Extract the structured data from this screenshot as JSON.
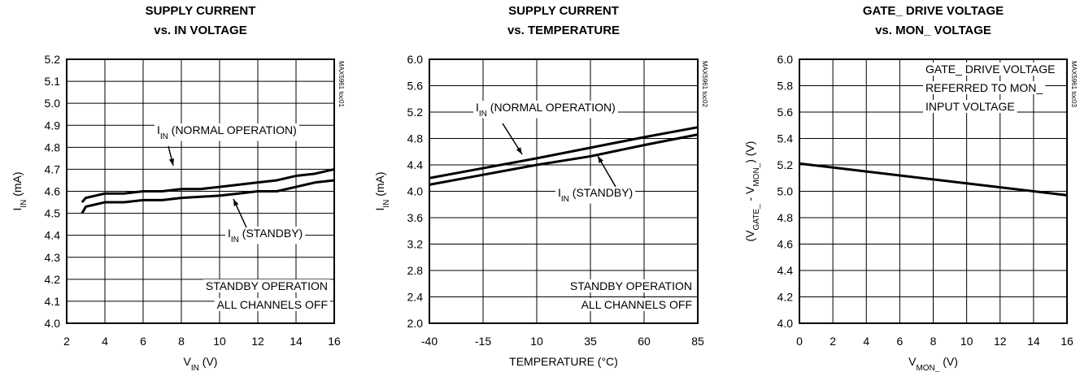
{
  "chart_data": [
    {
      "type": "line",
      "title": [
        "SUPPLY CURRENT",
        "vs. IN VOLTAGE"
      ],
      "side_label": "MAX5961 toc01",
      "xlabel": [
        "V",
        "IN",
        " (V)"
      ],
      "ylabel": [
        "I",
        "IN",
        " (mA)"
      ],
      "x": [
        2.8,
        3,
        3.5,
        4,
        5,
        6,
        7,
        8,
        9,
        10,
        11,
        12,
        13,
        14,
        15,
        16
      ],
      "series": [
        {
          "name": "NORMAL OPERATION",
          "color": "#000000",
          "values": [
            4.55,
            4.57,
            4.58,
            4.59,
            4.59,
            4.6,
            4.6,
            4.61,
            4.61,
            4.62,
            4.63,
            4.64,
            4.65,
            4.67,
            4.68,
            4.7
          ]
        },
        {
          "name": "STANDBY",
          "color": "#000000",
          "values": [
            4.5,
            4.53,
            4.54,
            4.55,
            4.55,
            4.56,
            4.56,
            4.57,
            4.575,
            4.58,
            4.59,
            4.6,
            4.6,
            4.62,
            4.64,
            4.65
          ]
        }
      ],
      "xlim": [
        2,
        16
      ],
      "xticks": [
        2,
        4,
        6,
        8,
        10,
        12,
        14,
        16
      ],
      "ylim": [
        4,
        5.2
      ],
      "yticks": [
        {
          "value": 4,
          "label": "4.0"
        },
        4.1,
        4.2,
        4.3,
        4.4,
        4.5,
        4.6,
        4.7,
        4.8,
        4.9,
        {
          "value": 5,
          "label": "5.0"
        },
        5.1,
        5.2
      ],
      "grid": true,
      "annotations": [
        [
          [
            "I",
            "IN",
            " (NORMAL OPERATION)"
          ]
        ],
        [
          [
            "I",
            "IN",
            " (STANDBY)"
          ]
        ],
        [
          [
            "STANDBY OPERATION"
          ],
          [
            "ALL CHANNELS OFF"
          ]
        ]
      ]
    },
    {
      "type": "line",
      "title": [
        "SUPPLY CURRENT",
        "vs. TEMPERATURE"
      ],
      "side_label": "MAX5961 toc02",
      "xlabel": [
        "TEMPERATURE (°C)"
      ],
      "ylabel": [
        "I",
        "IN",
        " (mA)"
      ],
      "x": [
        -40,
        -15,
        10,
        35,
        60,
        85
      ],
      "series": [
        {
          "name": "NORMAL OPERATION",
          "color": "#000000",
          "values": [
            4.2,
            4.35,
            4.5,
            4.66,
            4.82,
            4.97
          ]
        },
        {
          "name": "STANDBY",
          "color": "#000000",
          "values": [
            4.1,
            4.25,
            4.4,
            4.53,
            4.7,
            4.86
          ]
        }
      ],
      "xlim": [
        -40,
        85
      ],
      "xticks": [
        -40,
        -15,
        10,
        35,
        60,
        85
      ],
      "ylim": [
        2,
        6
      ],
      "yticks": [
        {
          "value": 2,
          "label": "2.0"
        },
        2.4,
        2.8,
        3.2,
        3.6,
        {
          "value": 4,
          "label": "4.0"
        },
        4.4,
        4.8,
        5.2,
        5.6,
        {
          "value": 6,
          "label": "6.0"
        }
      ],
      "grid": true,
      "annotations": [
        [
          [
            "I",
            "IN",
            " (NORMAL OPERATION)"
          ]
        ],
        [
          [
            "I",
            "IN",
            " (STANDBY)"
          ]
        ],
        [
          [
            "STANDBY OPERATION"
          ],
          [
            "ALL CHANNELS OFF"
          ]
        ]
      ]
    },
    {
      "type": "line",
      "title": [
        "GATE_ DRIVE VOLTAGE",
        "vs. MON_ VOLTAGE"
      ],
      "side_label": "MAX5961 toc03",
      "xlabel": [
        "V",
        "MON_",
        " (V)"
      ],
      "ylabel": [
        "(V",
        "GATE_",
        " - V",
        "MON_",
        ") (V)"
      ],
      "x": [
        0,
        4,
        8,
        12,
        16
      ],
      "series": [
        {
          "name": "GATE_ DRIVE VOLTAGE",
          "color": "#000000",
          "values": [
            5.21,
            5.15,
            5.09,
            5.03,
            4.97
          ]
        }
      ],
      "xlim": [
        0,
        16
      ],
      "xticks": [
        0,
        2,
        4,
        6,
        8,
        10,
        12,
        14,
        16
      ],
      "ylim": [
        4,
        6
      ],
      "yticks": [
        {
          "value": 4,
          "label": "4.0"
        },
        4.2,
        4.4,
        4.6,
        4.8,
        {
          "value": 5,
          "label": "5.0"
        },
        5.2,
        5.4,
        5.6,
        5.8,
        {
          "value": 6,
          "label": "6.0"
        }
      ],
      "grid": true,
      "annotations": [
        [
          [
            "GATE_ DRIVE VOLTAGE"
          ],
          [
            "REFERRED TO MON_"
          ],
          [
            "INPUT VOLTAGE"
          ]
        ]
      ]
    }
  ]
}
